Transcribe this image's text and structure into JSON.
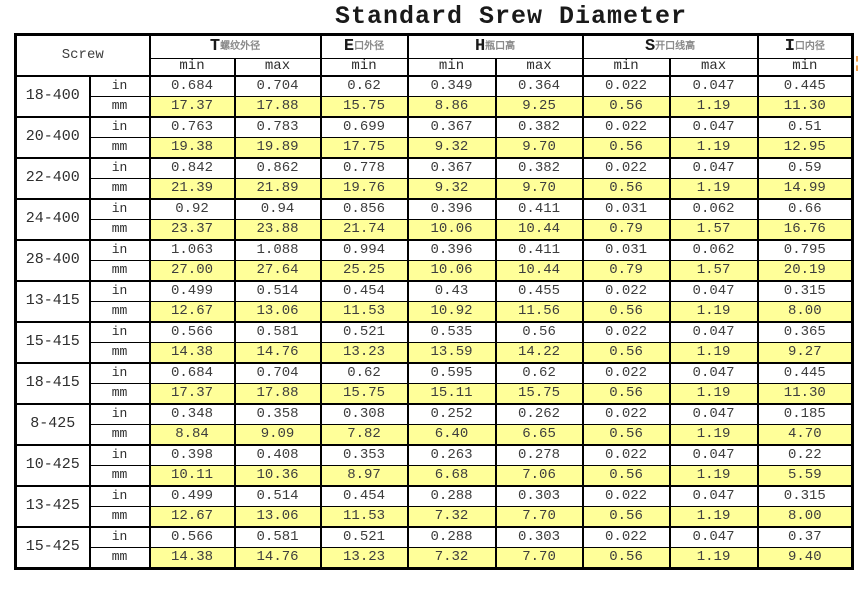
{
  "title": "Standard Srew Diameter",
  "chart_data": {
    "type": "table",
    "title": "Standard Srew Diameter",
    "corner_label": "Screw",
    "column_groups": [
      {
        "letter": "T",
        "cn": "螺纹外径",
        "subcols": [
          "min",
          "max"
        ]
      },
      {
        "letter": "E",
        "cn": "口外径",
        "subcols": [
          "min"
        ]
      },
      {
        "letter": "H",
        "cn": "瓶口高",
        "subcols": [
          "min",
          "max"
        ]
      },
      {
        "letter": "S",
        "cn": "开口线高",
        "subcols": [
          "min",
          "max"
        ]
      },
      {
        "letter": "I",
        "cn": "口内径",
        "subcols": [
          "min"
        ]
      }
    ],
    "subheader": [
      "min",
      "max",
      "min",
      "min",
      "max",
      "min",
      "max",
      "min"
    ],
    "unit_labels": [
      "in",
      "mm"
    ],
    "rows": [
      {
        "screw": "18-400",
        "in": [
          "0.684",
          "0.704",
          "0.62",
          "0.349",
          "0.364",
          "0.022",
          "0.047",
          "0.445"
        ],
        "mm": [
          "17.37",
          "17.88",
          "15.75",
          "8.86",
          "9.25",
          "0.56",
          "1.19",
          "11.30"
        ]
      },
      {
        "screw": "20-400",
        "in": [
          "0.763",
          "0.783",
          "0.699",
          "0.367",
          "0.382",
          "0.022",
          "0.047",
          "0.51"
        ],
        "mm": [
          "19.38",
          "19.89",
          "17.75",
          "9.32",
          "9.70",
          "0.56",
          "1.19",
          "12.95"
        ]
      },
      {
        "screw": "22-400",
        "in": [
          "0.842",
          "0.862",
          "0.778",
          "0.367",
          "0.382",
          "0.022",
          "0.047",
          "0.59"
        ],
        "mm": [
          "21.39",
          "21.89",
          "19.76",
          "9.32",
          "9.70",
          "0.56",
          "1.19",
          "14.99"
        ]
      },
      {
        "screw": "24-400",
        "in": [
          "0.92",
          "0.94",
          "0.856",
          "0.396",
          "0.411",
          "0.031",
          "0.062",
          "0.66"
        ],
        "mm": [
          "23.37",
          "23.88",
          "21.74",
          "10.06",
          "10.44",
          "0.79",
          "1.57",
          "16.76"
        ]
      },
      {
        "screw": "28-400",
        "in": [
          "1.063",
          "1.088",
          "0.994",
          "0.396",
          "0.411",
          "0.031",
          "0.062",
          "0.795"
        ],
        "mm": [
          "27.00",
          "27.64",
          "25.25",
          "10.06",
          "10.44",
          "0.79",
          "1.57",
          "20.19"
        ]
      },
      {
        "screw": "13-415",
        "in": [
          "0.499",
          "0.514",
          "0.454",
          "0.43",
          "0.455",
          "0.022",
          "0.047",
          "0.315"
        ],
        "mm": [
          "12.67",
          "13.06",
          "11.53",
          "10.92",
          "11.56",
          "0.56",
          "1.19",
          "8.00"
        ]
      },
      {
        "screw": "15-415",
        "in": [
          "0.566",
          "0.581",
          "0.521",
          "0.535",
          "0.56",
          "0.022",
          "0.047",
          "0.365"
        ],
        "mm": [
          "14.38",
          "14.76",
          "13.23",
          "13.59",
          "14.22",
          "0.56",
          "1.19",
          "9.27"
        ]
      },
      {
        "screw": "18-415",
        "in": [
          "0.684",
          "0.704",
          "0.62",
          "0.595",
          "0.62",
          "0.022",
          "0.047",
          "0.445"
        ],
        "mm": [
          "17.37",
          "17.88",
          "15.75",
          "15.11",
          "15.75",
          "0.56",
          "1.19",
          "11.30"
        ]
      },
      {
        "screw": "8-425",
        "in": [
          "0.348",
          "0.358",
          "0.308",
          "0.252",
          "0.262",
          "0.022",
          "0.047",
          "0.185"
        ],
        "mm": [
          "8.84",
          "9.09",
          "7.82",
          "6.40",
          "6.65",
          "0.56",
          "1.19",
          "4.70"
        ]
      },
      {
        "screw": "10-425",
        "in": [
          "0.398",
          "0.408",
          "0.353",
          "0.263",
          "0.278",
          "0.022",
          "0.047",
          "0.22"
        ],
        "mm": [
          "10.11",
          "10.36",
          "8.97",
          "6.68",
          "7.06",
          "0.56",
          "1.19",
          "5.59"
        ]
      },
      {
        "screw": "13-425",
        "in": [
          "0.499",
          "0.514",
          "0.454",
          "0.288",
          "0.303",
          "0.022",
          "0.047",
          "0.315"
        ],
        "mm": [
          "12.67",
          "13.06",
          "11.53",
          "7.32",
          "7.70",
          "0.56",
          "1.19",
          "8.00"
        ]
      },
      {
        "screw": "15-425",
        "in": [
          "0.566",
          "0.581",
          "0.521",
          "0.288",
          "0.303",
          "0.022",
          "0.047",
          "0.37"
        ],
        "mm": [
          "14.38",
          "14.76",
          "13.23",
          "7.32",
          "7.70",
          "0.56",
          "1.19",
          "9.40"
        ]
      }
    ]
  },
  "colors": {
    "highlight_row": "#FFFF99",
    "grid": "#000000",
    "text": "#3d3d3d",
    "header_cn": "#8a8a8a",
    "edge_mark": "#f0a04e"
  }
}
